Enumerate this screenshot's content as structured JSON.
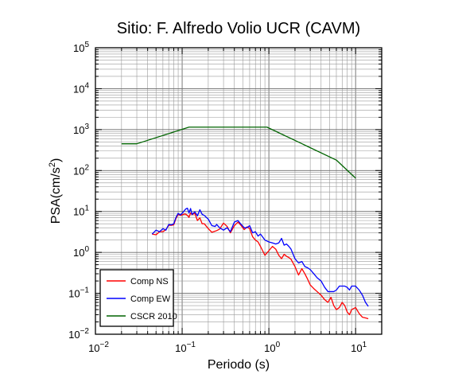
{
  "chart_data": {
    "type": "line",
    "title": "Sitio: F. Alfredo Volio UCR (CAVM)",
    "xlabel": "Periodo (s)",
    "ylabel": {
      "base": "PSA(cm/s",
      "sup": "2",
      "tail": ")"
    },
    "x_scale": "log",
    "y_scale": "log",
    "xlim": [
      0.01,
      20
    ],
    "ylim": [
      0.01,
      100000
    ],
    "x_ticks": [
      {
        "value": 0.01,
        "base": "10",
        "exp": "−2"
      },
      {
        "value": 0.1,
        "base": "10",
        "exp": "−1"
      },
      {
        "value": 1,
        "base": "10",
        "exp": "0"
      },
      {
        "value": 10,
        "base": "10",
        "exp": "1"
      }
    ],
    "y_ticks": [
      {
        "value": 0.01,
        "base": "10",
        "exp": "−2"
      },
      {
        "value": 0.1,
        "base": "10",
        "exp": "−1"
      },
      {
        "value": 1,
        "base": "10",
        "exp": "0"
      },
      {
        "value": 10,
        "base": "10",
        "exp": "1"
      },
      {
        "value": 100,
        "base": "10",
        "exp": "2"
      },
      {
        "value": 1000,
        "base": "10",
        "exp": "3"
      },
      {
        "value": 10000,
        "base": "10",
        "exp": "4"
      },
      {
        "value": 100000,
        "base": "10",
        "exp": "5"
      }
    ],
    "grid": true,
    "legend_position": "bottom-left",
    "series": [
      {
        "name": "Comp NS",
        "color": "#ff0000",
        "x": [
          0.045,
          0.05,
          0.055,
          0.06,
          0.065,
          0.07,
          0.075,
          0.08,
          0.085,
          0.09,
          0.095,
          0.1,
          0.105,
          0.11,
          0.115,
          0.12,
          0.125,
          0.13,
          0.14,
          0.15,
          0.16,
          0.17,
          0.18,
          0.2,
          0.22,
          0.24,
          0.25,
          0.27,
          0.3,
          0.33,
          0.36,
          0.4,
          0.44,
          0.48,
          0.52,
          0.56,
          0.6,
          0.65,
          0.7,
          0.75,
          0.8,
          0.9,
          1.0,
          1.1,
          1.2,
          1.3,
          1.4,
          1.5,
          1.6,
          1.7,
          1.8,
          2.0,
          2.2,
          2.4,
          2.6,
          2.8,
          3.0,
          3.3,
          3.6,
          4.0,
          4.4,
          4.8,
          5.2,
          5.6,
          6.0,
          6.5,
          7.0,
          7.5,
          8.0,
          8.5,
          9.0,
          10,
          11,
          12,
          13,
          14
        ],
        "y": [
          2.8,
          2.7,
          3.2,
          3.2,
          3.6,
          4.6,
          4.6,
          4.7,
          6.8,
          8.5,
          8.0,
          8.2,
          8.6,
          8.6,
          8.0,
          7.2,
          9.2,
          8.4,
          9.0,
          6.0,
          7.0,
          5.0,
          5.0,
          3.8,
          3.1,
          3.3,
          3.4,
          3.7,
          5.2,
          4.3,
          3.0,
          4.5,
          5.5,
          4.5,
          3.6,
          4.2,
          3.8,
          2.4,
          2.0,
          1.8,
          1.4,
          0.85,
          1.1,
          1.4,
          1.2,
          0.85,
          0.7,
          0.9,
          0.8,
          0.75,
          0.68,
          0.45,
          0.28,
          0.4,
          0.3,
          0.22,
          0.16,
          0.13,
          0.11,
          0.09,
          0.07,
          0.06,
          0.08,
          0.05,
          0.04,
          0.045,
          0.06,
          0.05,
          0.035,
          0.03,
          0.04,
          0.045,
          0.032,
          0.026,
          0.025,
          0.024
        ]
      },
      {
        "name": "Comp EW",
        "color": "#0000ff",
        "x": [
          0.045,
          0.05,
          0.055,
          0.06,
          0.065,
          0.07,
          0.075,
          0.08,
          0.085,
          0.09,
          0.095,
          0.1,
          0.105,
          0.11,
          0.115,
          0.12,
          0.125,
          0.13,
          0.14,
          0.15,
          0.16,
          0.17,
          0.18,
          0.2,
          0.22,
          0.24,
          0.25,
          0.27,
          0.3,
          0.33,
          0.36,
          0.4,
          0.44,
          0.48,
          0.52,
          0.56,
          0.6,
          0.65,
          0.7,
          0.75,
          0.8,
          0.9,
          1.0,
          1.1,
          1.2,
          1.3,
          1.4,
          1.5,
          1.6,
          1.7,
          1.8,
          2.0,
          2.2,
          2.4,
          2.6,
          2.8,
          3.0,
          3.3,
          3.6,
          4.0,
          4.4,
          4.8,
          5.2,
          5.6,
          6.0,
          6.5,
          7.0,
          7.5,
          8.0,
          8.5,
          9.0,
          10,
          11,
          12,
          13,
          14
        ],
        "y": [
          2.8,
          3.5,
          3.2,
          3.8,
          3.5,
          4.8,
          4.7,
          5.0,
          7.2,
          9.0,
          8.2,
          9.0,
          10.2,
          11.5,
          12.0,
          9.2,
          11.8,
          8.5,
          9.8,
          7.8,
          11.0,
          8.5,
          8.0,
          6.5,
          4.5,
          4.3,
          4.8,
          4.0,
          3.5,
          4.0,
          3.2,
          5.5,
          6.0,
          4.8,
          4.0,
          4.0,
          4.5,
          3.0,
          3.2,
          2.5,
          2.8,
          2.0,
          1.8,
          1.7,
          1.6,
          1.7,
          2.2,
          1.5,
          1.6,
          1.4,
          1.2,
          0.7,
          0.55,
          0.6,
          0.45,
          0.42,
          0.38,
          0.3,
          0.24,
          0.2,
          0.14,
          0.11,
          0.11,
          0.11,
          0.12,
          0.15,
          0.15,
          0.15,
          0.14,
          0.12,
          0.15,
          0.15,
          0.12,
          0.09,
          0.06,
          0.048
        ]
      },
      {
        "name": "CSCR 2010",
        "color": "#006400",
        "x": [
          0.02,
          0.03,
          0.12,
          0.95,
          6.0,
          10
        ],
        "y": [
          450,
          450,
          1150,
          1150,
          180,
          65
        ]
      }
    ]
  }
}
